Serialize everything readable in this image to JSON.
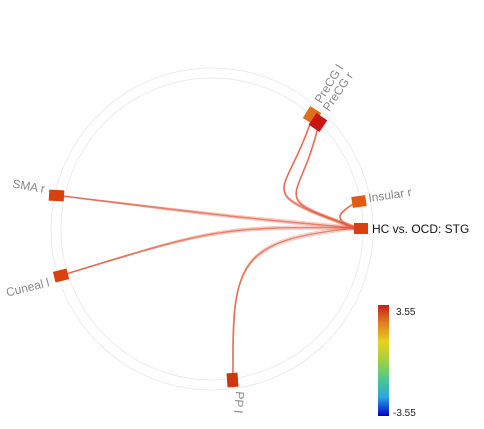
{
  "nodes": [
    {
      "id": "precg-l",
      "label": "PreCG l",
      "color": "#e06e1a"
    },
    {
      "id": "precg-r",
      "label": "PreCG r",
      "color": "#cc1414"
    },
    {
      "id": "insular-r",
      "label": "Insular r",
      "color": "#e05a14"
    },
    {
      "id": "stg",
      "label": "HC vs. OCD: STG",
      "color": "#d8400e"
    },
    {
      "id": "pp-l",
      "label": "PP l",
      "color": "#d0360e"
    },
    {
      "id": "cuneal-l",
      "label": "Cuneal l",
      "color": "#d8400e"
    },
    {
      "id": "sma-r",
      "label": "SMA r",
      "color": "#d8400e"
    }
  ],
  "connections": [
    {
      "from": "stg",
      "to": "precg-l"
    },
    {
      "from": "stg",
      "to": "precg-r"
    },
    {
      "from": "stg",
      "to": "insular-r"
    },
    {
      "from": "stg",
      "to": "sma-r"
    },
    {
      "from": "stg",
      "to": "cuneal-l"
    },
    {
      "from": "stg",
      "to": "pp-l"
    }
  ],
  "colorbar": {
    "max_label": "3.55",
    "min_label": "-3.55",
    "stops": [
      "#0000cc",
      "#2aa4e0",
      "#50c88c",
      "#a0d040",
      "#e8d020",
      "#e08020",
      "#c81e1e"
    ]
  },
  "colors": {
    "ring": "#e6e6e6",
    "edge": "#e2553a",
    "label": "#888888",
    "highlight_label": "#111111"
  }
}
